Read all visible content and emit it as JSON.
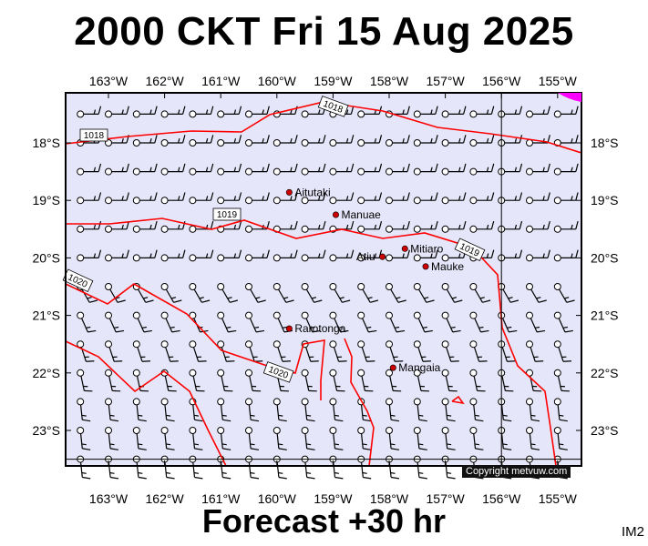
{
  "title": "2000 CKT Fri 15 Aug 2025",
  "forecast": "Forecast +30 hr",
  "image_code": "IM2",
  "copyright": "Copyright metvuw.com",
  "colors": {
    "background": "#e6e6fa",
    "isobar": "#ff0000",
    "station": "#cc0000",
    "high_pressure_patch": "#ff00ff"
  },
  "longitude_ticks": [
    "163°W",
    "162°W",
    "161°W",
    "160°W",
    "159°W",
    "158°W",
    "157°W",
    "156°W",
    "155°W"
  ],
  "latitude_ticks": [
    "18°S",
    "19°S",
    "20°S",
    "21°S",
    "22°S",
    "23°S"
  ],
  "isobars": [
    {
      "label": "1018",
      "pressure_hpa": 1018
    },
    {
      "label": "1019",
      "pressure_hpa": 1019
    },
    {
      "label": "1020",
      "pressure_hpa": 1020
    }
  ],
  "places": [
    {
      "name": "Aitutaki",
      "lon": -159.78,
      "lat": -18.86
    },
    {
      "name": "Manuae",
      "lon": -158.95,
      "lat": -19.25
    },
    {
      "name": "Atiu",
      "lon": -158.12,
      "lat": -19.98
    },
    {
      "name": "Mitiaro",
      "lon": -157.72,
      "lat": -19.84
    },
    {
      "name": "Mauke",
      "lon": -157.35,
      "lat": -20.15
    },
    {
      "name": "Rarotonga",
      "lon": -159.78,
      "lat": -21.23
    },
    {
      "name": "Mangaia",
      "lon": -157.93,
      "lat": -21.91
    }
  ],
  "wind_barb_grid": {
    "lon_start": -163.5,
    "lon_step": 0.5,
    "lat_start": -17.5,
    "lat_step": -0.5,
    "columns": 19,
    "rows": 13
  }
}
